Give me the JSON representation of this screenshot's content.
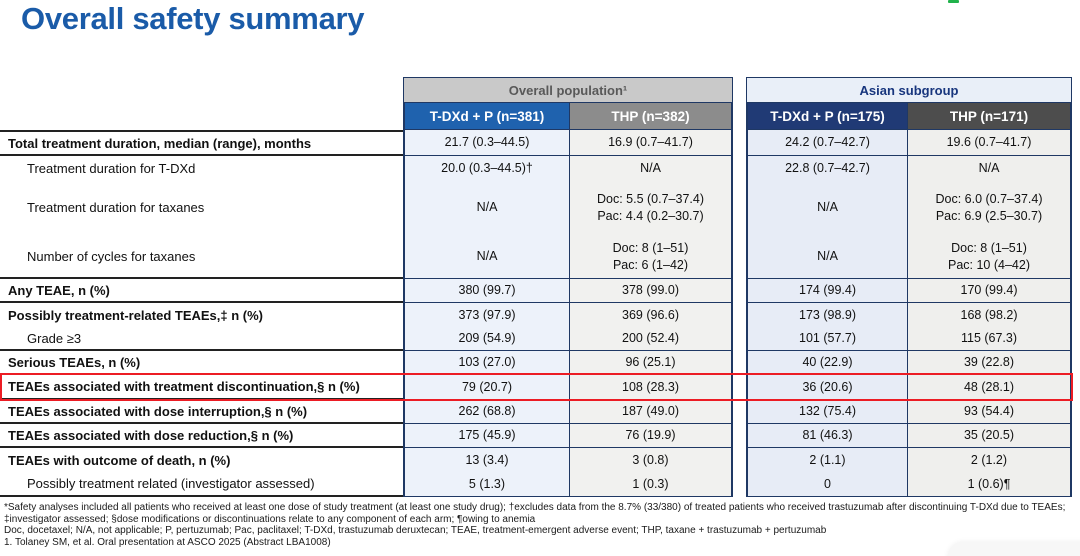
{
  "page": {
    "title": "Overall safety summary"
  },
  "colors": {
    "title": "#1a5ba8",
    "text": "#111111",
    "border": "#1f3864",
    "label_border": "#222222",
    "highlight": "#ec1c24",
    "green_mark": "#21b24b",
    "grp_overall_bg": "#c9c9c9",
    "grp_overall_text": "#595959",
    "grp_asian_bg": "#e9eff8",
    "grp_asian_text": "#17357d",
    "hdr_tdxd_overall": "#1f62ae",
    "hdr_thp_overall": "#8c8c8c",
    "hdr_tdxd_asian": "#203a75",
    "hdr_thp_asian": "#4d4d4d",
    "cell_tdxd_overall": "#edf2fa",
    "cell_thp_overall": "#f1f1ef",
    "cell_tdxd_asian": "#e7ecf6",
    "cell_thp_asian": "#efefed"
  },
  "table": {
    "group_headers": [
      {
        "label": "Overall population¹"
      },
      {
        "label": "Asian subgroup"
      }
    ],
    "column_headers": [
      "T-DXd + P (n=381)",
      "THP (n=382)",
      "T-DXd + P (n=175)",
      "THP (n=171)"
    ],
    "rows": [
      {
        "label": "Total treatment duration, median (range), months",
        "style": "bold",
        "highlight": false,
        "group_end": true,
        "values": [
          "21.7 (0.3–44.5)",
          "16.9 (0.7–41.7)",
          "24.2 (0.7–42.7)",
          "19.6 (0.7–41.7)"
        ]
      },
      {
        "label": "Treatment duration for T-DXd",
        "style": "indent",
        "highlight": false,
        "group_end": false,
        "values": [
          "20.0 (0.3–44.5)†",
          "N/A",
          "22.8 (0.7–42.7)",
          "N/A"
        ]
      },
      {
        "label": "Treatment duration for taxanes",
        "style": "indent",
        "highlight": false,
        "group_end": false,
        "values": [
          "N/A",
          "Doc: 5.5 (0.7–37.4)\nPac: 4.4 (0.2–30.7)",
          "N/A",
          "Doc: 6.0 (0.7–37.4)\nPac: 6.9 (2.5–30.7)"
        ]
      },
      {
        "label": "Number of cycles for taxanes",
        "style": "indent",
        "highlight": false,
        "group_end": true,
        "values": [
          "N/A",
          "Doc: 8 (1–51)\nPac: 6 (1–42)",
          "N/A",
          "Doc: 8 (1–51)\nPac: 10 (4–42)"
        ]
      },
      {
        "label": "Any TEAE, n (%)",
        "style": "bold",
        "highlight": false,
        "group_end": true,
        "values": [
          "380 (99.7)",
          "378 (99.0)",
          "174 (99.4)",
          "170 (99.4)"
        ]
      },
      {
        "label": "Possibly treatment-related TEAEs,‡ n (%)",
        "style": "bold",
        "highlight": false,
        "group_end": false,
        "values": [
          "373 (97.9)",
          "369 (96.6)",
          "173 (98.9)",
          "168 (98.2)"
        ]
      },
      {
        "label": "Grade ≥3",
        "style": "indent",
        "highlight": false,
        "group_end": true,
        "values": [
          "209 (54.9)",
          "200 (52.4)",
          "101 (57.7)",
          "115 (67.3)"
        ]
      },
      {
        "label": "Serious TEAEs, n (%)",
        "style": "bold",
        "highlight": false,
        "group_end": true,
        "values": [
          "103 (27.0)",
          "96 (25.1)",
          "40 (22.9)",
          "39 (22.8)"
        ]
      },
      {
        "label": "TEAEs associated with treatment discontinuation,§ n (%)",
        "style": "bold",
        "highlight": true,
        "group_end": true,
        "values": [
          "79 (20.7)",
          "108 (28.3)",
          "36 (20.6)",
          "48 (28.1)"
        ]
      },
      {
        "label": "TEAEs associated with dose interruption,§ n (%)",
        "style": "bold",
        "highlight": false,
        "group_end": true,
        "values": [
          "262 (68.8)",
          "187 (49.0)",
          "132 (75.4)",
          "93 (54.4)"
        ]
      },
      {
        "label": "TEAEs associated with dose reduction,§ n (%)",
        "style": "bold",
        "highlight": false,
        "group_end": true,
        "values": [
          "175 (45.9)",
          "76 (19.9)",
          "81 (46.3)",
          "35 (20.5)"
        ]
      },
      {
        "label": "TEAEs with outcome of death, n (%)",
        "style": "bold",
        "highlight": false,
        "group_end": false,
        "values": [
          "13 (3.4)",
          "3 (0.8)",
          "2 (1.1)",
          "2 (1.2)"
        ]
      },
      {
        "label": "Possibly treatment related (investigator assessed)",
        "style": "indent",
        "highlight": false,
        "group_end": true,
        "values": [
          "5 (1.3)",
          "1 (0.3)",
          "0",
          "1 (0.6)¶"
        ]
      }
    ]
  },
  "footnotes": [
    "*Safety analyses included all patients who received at least one dose of study treatment (at least one study drug); †excludes data from the 8.7% (33/380) of treated patients who received trastuzumab after discontinuing T-DXd due to TEAEs;",
    "‡investigator assessed; §dose modifications or discontinuations relate to any component of each arm; ¶owing to anemia",
    "Doc, docetaxel; N/A, not applicable; P, pertuzumab; Pac, paclitaxel; T-DXd, trastuzumab deruxtecan; TEAE, treatment-emergent adverse event; THP, taxane + trastuzumab + pertuzumab",
    "1. Tolaney SM, et al. Oral presentation at ASCO 2025 (Abstract LBA1008)"
  ]
}
